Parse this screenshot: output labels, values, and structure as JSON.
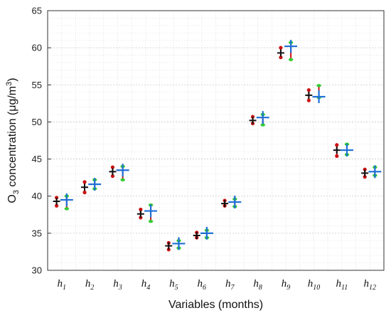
{
  "chart_data": {
    "type": "scatter",
    "subtype": "interval-markers",
    "xlabel": "Variables (months)",
    "ylabel": {
      "base": "O",
      "sub": "3",
      "text": " concentration (",
      "mu": "μ",
      "unit": "g/m",
      "sup": "3",
      "close": ")"
    },
    "ylim": [
      30,
      65
    ],
    "yticks": [
      30,
      35,
      40,
      45,
      50,
      55,
      60,
      65
    ],
    "ytick_labels": [
      "30",
      "35",
      "40",
      "45",
      "50",
      "55",
      "60",
      "65"
    ],
    "categories": [
      {
        "base": "h",
        "sub": "1"
      },
      {
        "base": "h",
        "sub": "2"
      },
      {
        "base": "h",
        "sub": "3"
      },
      {
        "base": "h",
        "sub": "4"
      },
      {
        "base": "h",
        "sub": "5"
      },
      {
        "base": "h",
        "sub": "6"
      },
      {
        "base": "h",
        "sub": "7"
      },
      {
        "base": "h",
        "sub": "8"
      },
      {
        "base": "h",
        "sub": "9"
      },
      {
        "base": "h",
        "sub": "10"
      },
      {
        "base": "h",
        "sub": "11"
      },
      {
        "base": "h",
        "sub": "12"
      }
    ],
    "grid": true,
    "grid_minor": true,
    "series": [
      {
        "marker": "black-plus",
        "color": "#111111",
        "whisker_color": "#cc1111",
        "values": [
          39.3,
          41.2,
          43.3,
          37.6,
          33.3,
          34.7,
          39.0,
          50.2,
          59.3,
          53.6,
          46.2,
          43.1
        ],
        "upper": [
          39.8,
          41.9,
          43.9,
          38.2,
          33.7,
          35.1,
          39.4,
          50.7,
          60.0,
          54.3,
          46.9,
          43.6
        ],
        "lower": [
          38.7,
          40.5,
          42.7,
          37.1,
          32.8,
          34.4,
          38.7,
          49.8,
          58.7,
          52.9,
          45.4,
          42.6
        ]
      },
      {
        "marker": "blue-plus",
        "color": "#1f6fd6",
        "whisker_color": "#cc1111",
        "cap_color": "#33cc33",
        "values": [
          39.5,
          41.6,
          43.5,
          38.0,
          33.6,
          35.0,
          39.2,
          50.6,
          60.2,
          53.4,
          46.2,
          43.3
        ],
        "upper": [
          40.0,
          42.2,
          44.0,
          38.8,
          34.0,
          35.4,
          39.6,
          51.0,
          60.7,
          54.9,
          47.0,
          43.9
        ],
        "lower": [
          38.3,
          41.0,
          42.2,
          36.6,
          33.0,
          34.4,
          38.6,
          49.6,
          58.4,
          53.3,
          45.6,
          42.8
        ]
      }
    ]
  }
}
